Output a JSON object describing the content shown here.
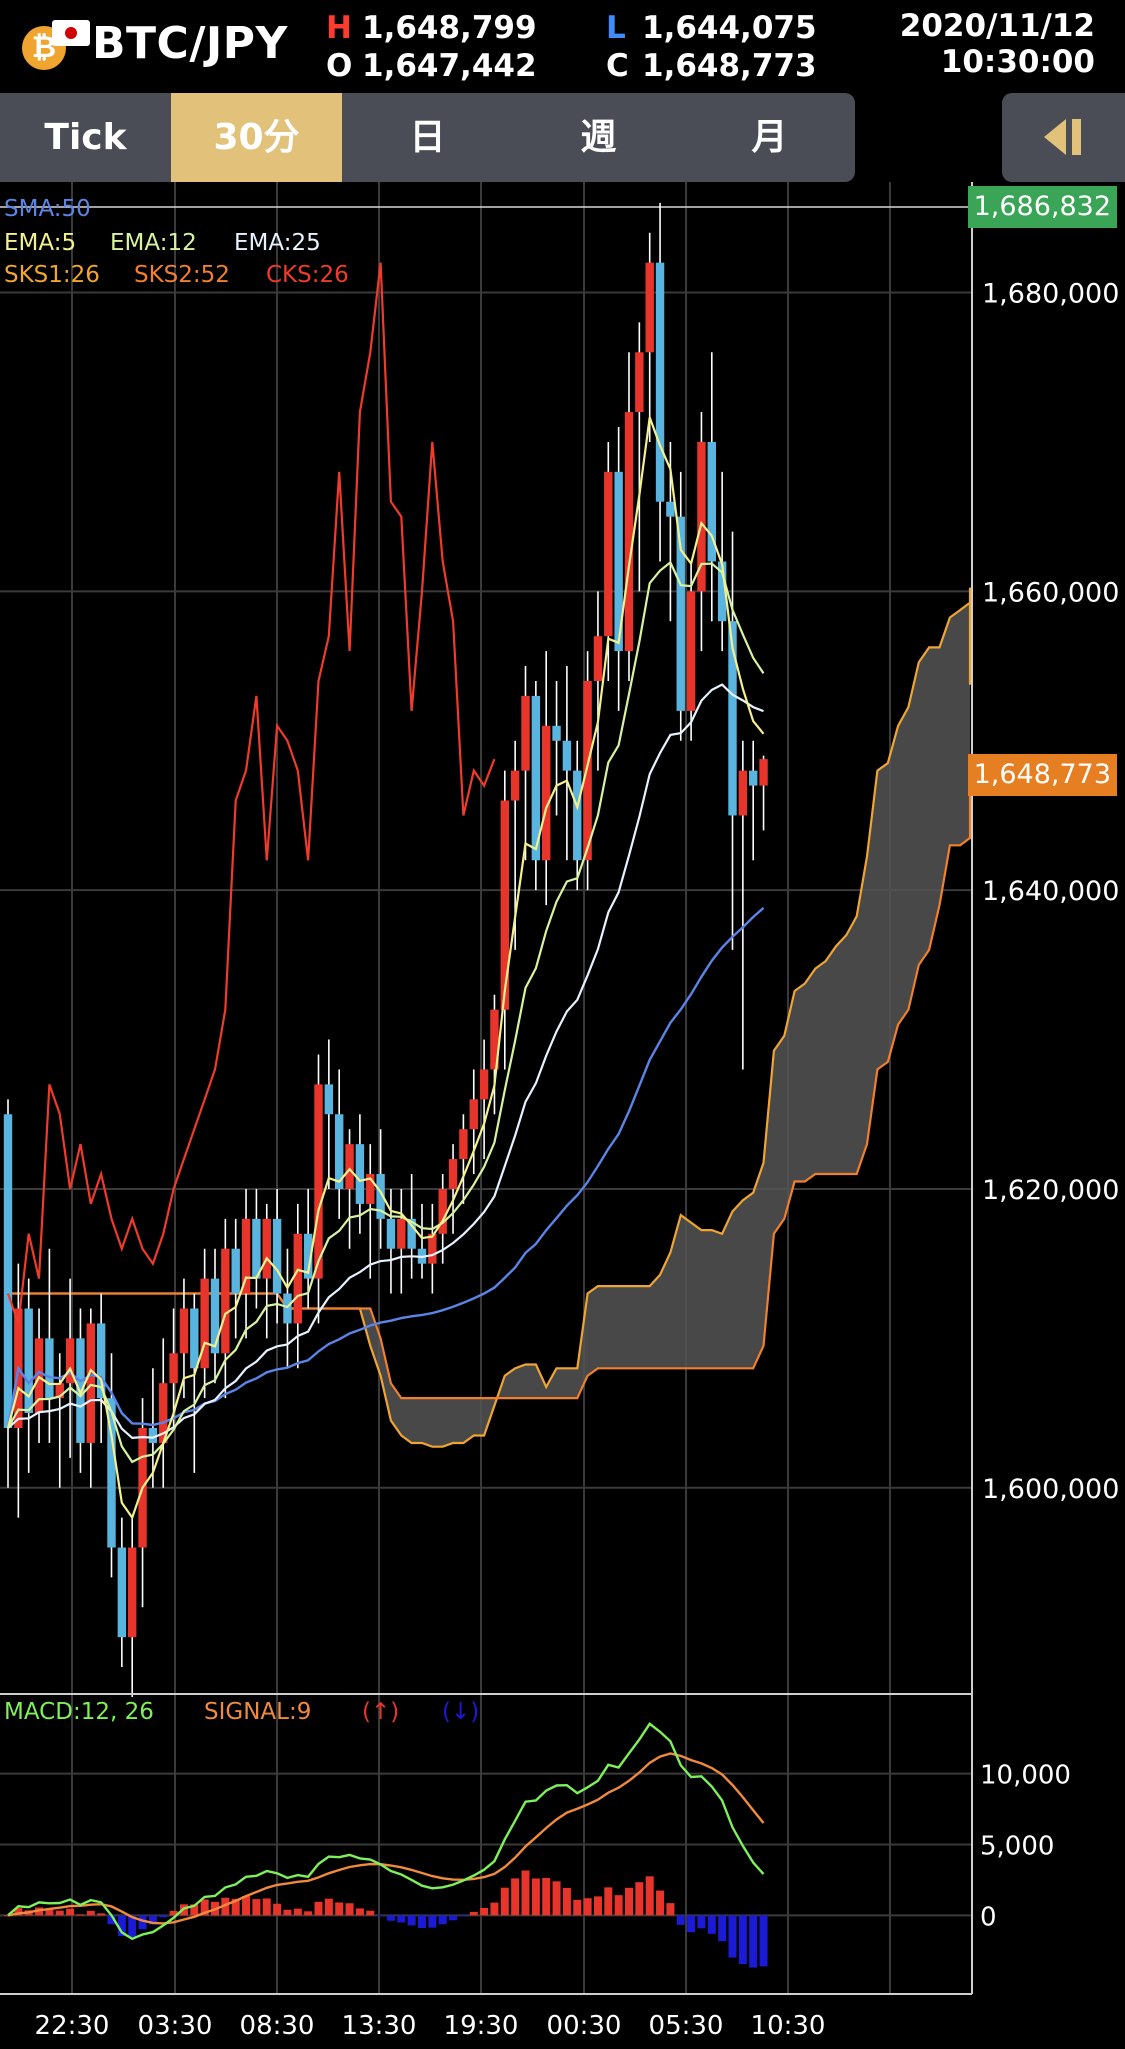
{
  "header": {
    "pair": "BTC/JPY",
    "high_label": "H",
    "high": "1,648,799",
    "low_label": "L",
    "low": "1,644,075",
    "open_label": "O",
    "open": "1,647,442",
    "close_label": "C",
    "close": "1,648,773",
    "date": "2020/11/12",
    "time": "10:30:00",
    "icon": "bitcoin-icon"
  },
  "tabs": [
    {
      "label": "Tick",
      "active": false
    },
    {
      "label": "30分",
      "active": true
    },
    {
      "label": "日",
      "active": false
    },
    {
      "label": "週",
      "active": false
    },
    {
      "label": "月",
      "active": false
    }
  ],
  "colors": {
    "up": "#e8352b",
    "down": "#5ab4e0",
    "sma50": "#5b84e6",
    "ema5": "#f3f08e",
    "ema12": "#d8f3a0",
    "ema25": "#e6f2ff",
    "sks1": "#f0a531",
    "sks2": "#f07f2e",
    "cks": "#ef3b2c",
    "cloud": "#555555",
    "macd": "#7ef05a",
    "signal": "#f08a3c",
    "hist_up": "#e8352b",
    "hist_down": "#1b1bd6",
    "tab_active": "#e2c27a"
  },
  "chart_data": {
    "type": "candlestick",
    "x_tick_labels": [
      "22:30",
      "03:30",
      "08:30",
      "13:30",
      "19:30",
      "00:30",
      "05:30",
      "10:30"
    ],
    "price_axis": {
      "ticks": [
        1600000,
        1620000,
        1640000,
        1660000,
        1680000
      ],
      "tick_labels": [
        "1,600,000",
        "1,620,000",
        "1,640,000",
        "1,660,000",
        "1,680,000"
      ],
      "range": [
        1587000,
        1687800
      ]
    },
    "high_marker": "1,686,832",
    "last_price_marker": "1,648,773",
    "legend": {
      "row1": [
        "SMA:50"
      ],
      "row2": [
        "EMA:5",
        "EMA:12",
        "EMA:25"
      ],
      "row3": [
        "SKS1:26",
        "SKS2:52",
        "CKS:26"
      ]
    },
    "candles": [
      [
        1625000,
        1626000,
        1600000,
        1604000
      ],
      [
        1604000,
        1615000,
        1598000,
        1612000
      ],
      [
        1612000,
        1614000,
        1601000,
        1605000
      ],
      [
        1605000,
        1612000,
        1603000,
        1610000
      ],
      [
        1610000,
        1616000,
        1603000,
        1606000
      ],
      [
        1606000,
        1609000,
        1600000,
        1607000
      ],
      [
        1607000,
        1614000,
        1602000,
        1610000
      ],
      [
        1610000,
        1612000,
        1601000,
        1603000
      ],
      [
        1603000,
        1612000,
        1600000,
        1611000
      ],
      [
        1611000,
        1613000,
        1603000,
        1606000
      ],
      [
        1606000,
        1609000,
        1594000,
        1596000
      ],
      [
        1596000,
        1598000,
        1588000,
        1590000
      ],
      [
        1590000,
        1598000,
        1586000,
        1596000
      ],
      [
        1596000,
        1606000,
        1592000,
        1604000
      ],
      [
        1604000,
        1608000,
        1600000,
        1603000
      ],
      [
        1603000,
        1610000,
        1600000,
        1607000
      ],
      [
        1607000,
        1612000,
        1604000,
        1609000
      ],
      [
        1609000,
        1614000,
        1606000,
        1612000
      ],
      [
        1612000,
        1613000,
        1601000,
        1608000
      ],
      [
        1608000,
        1616000,
        1606000,
        1614000
      ],
      [
        1614000,
        1616000,
        1607000,
        1609000
      ],
      [
        1609000,
        1618000,
        1606000,
        1616000
      ],
      [
        1616000,
        1618000,
        1610000,
        1613000
      ],
      [
        1613000,
        1620000,
        1610000,
        1618000
      ],
      [
        1618000,
        1620000,
        1612000,
        1614000
      ],
      [
        1614000,
        1619000,
        1610000,
        1618000
      ],
      [
        1618000,
        1620000,
        1611000,
        1613000
      ],
      [
        1613000,
        1616000,
        1608000,
        1611000
      ],
      [
        1611000,
        1619000,
        1608000,
        1617000
      ],
      [
        1617000,
        1620000,
        1612000,
        1614000
      ],
      [
        1614000,
        1629000,
        1611000,
        1627000
      ],
      [
        1627000,
        1630000,
        1620000,
        1625000
      ],
      [
        1625000,
        1628000,
        1618000,
        1620000
      ],
      [
        1620000,
        1624000,
        1616000,
        1623000
      ],
      [
        1623000,
        1625000,
        1617000,
        1619000
      ],
      [
        1619000,
        1623000,
        1614000,
        1621000
      ],
      [
        1621000,
        1624000,
        1616000,
        1618000
      ],
      [
        1618000,
        1620000,
        1613000,
        1616000
      ],
      [
        1616000,
        1620000,
        1613000,
        1618000
      ],
      [
        1618000,
        1621000,
        1614000,
        1616000
      ],
      [
        1616000,
        1619000,
        1614000,
        1615000
      ],
      [
        1615000,
        1619000,
        1613000,
        1617000
      ],
      [
        1617000,
        1621000,
        1615000,
        1620000
      ],
      [
        1620000,
        1623000,
        1617000,
        1622000
      ],
      [
        1622000,
        1625000,
        1619000,
        1624000
      ],
      [
        1624000,
        1628000,
        1621000,
        1626000
      ],
      [
        1626000,
        1630000,
        1622000,
        1628000
      ],
      [
        1628000,
        1633000,
        1625000,
        1632000
      ],
      [
        1632000,
        1648000,
        1628000,
        1646000
      ],
      [
        1646000,
        1650000,
        1636000,
        1648000
      ],
      [
        1648000,
        1655000,
        1642000,
        1653000
      ],
      [
        1653000,
        1654000,
        1640000,
        1642000
      ],
      [
        1642000,
        1656000,
        1639000,
        1651000
      ],
      [
        1651000,
        1654000,
        1645000,
        1650000
      ],
      [
        1650000,
        1655000,
        1642000,
        1648000
      ],
      [
        1648000,
        1650000,
        1640000,
        1642000
      ],
      [
        1642000,
        1656000,
        1640000,
        1654000
      ],
      [
        1654000,
        1660000,
        1648000,
        1657000
      ],
      [
        1657000,
        1670000,
        1654000,
        1668000
      ],
      [
        1668000,
        1671000,
        1652000,
        1656000
      ],
      [
        1656000,
        1676000,
        1654000,
        1672000
      ],
      [
        1672000,
        1678000,
        1660000,
        1676000
      ],
      [
        1676000,
        1684000,
        1670000,
        1682000
      ],
      [
        1682000,
        1686000,
        1662000,
        1666000
      ],
      [
        1666000,
        1670000,
        1658000,
        1665000
      ],
      [
        1665000,
        1668000,
        1650000,
        1652000
      ],
      [
        1652000,
        1662000,
        1650000,
        1660000
      ],
      [
        1660000,
        1672000,
        1656000,
        1670000
      ],
      [
        1670000,
        1676000,
        1658000,
        1662000
      ],
      [
        1662000,
        1668000,
        1656000,
        1658000
      ],
      [
        1658000,
        1664000,
        1636000,
        1645000
      ],
      [
        1645000,
        1650000,
        1628000,
        1648000
      ],
      [
        1648000,
        1650000,
        1642000,
        1647000
      ],
      [
        1647000,
        1649000,
        1644000,
        1648773
      ]
    ],
    "macd_axis": {
      "ticks": [
        0,
        5000,
        10000
      ],
      "tick_labels": [
        "0",
        "5,000",
        "10,000"
      ],
      "range": [
        -4000,
        14000
      ]
    },
    "macd_legend": [
      "MACD:12, 26",
      "SIGNAL:9",
      "(↑)",
      "(↓)"
    ]
  }
}
